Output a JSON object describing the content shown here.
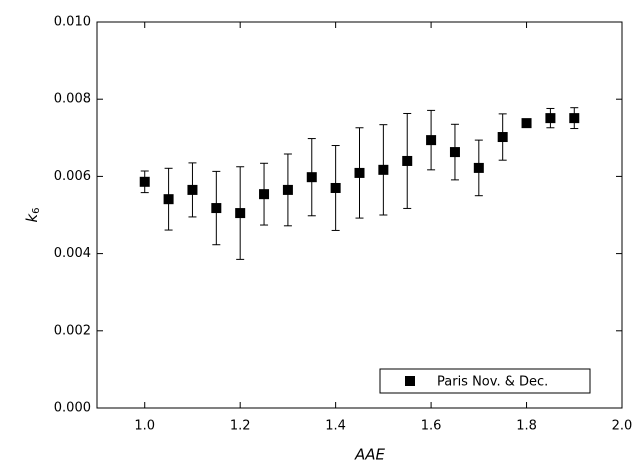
{
  "chart_data": {
    "type": "scatter",
    "xlabel": "AAE",
    "ylabel": "k",
    "ylabel_subscript": "6",
    "x": [
      1.0,
      1.05,
      1.1,
      1.15,
      1.2,
      1.25,
      1.3,
      1.35,
      1.4,
      1.45,
      1.5,
      1.55,
      1.6,
      1.65,
      1.7,
      1.75,
      1.8,
      1.85,
      1.9
    ],
    "series": [
      {
        "name": "Paris Nov. & Dec.",
        "color": "#000000",
        "values": [
          0.00586,
          0.00541,
          0.00565,
          0.00518,
          0.00505,
          0.00554,
          0.00565,
          0.00598,
          0.0057,
          0.00609,
          0.00617,
          0.0064,
          0.00694,
          0.00663,
          0.00622,
          0.00702,
          0.00738,
          0.00751,
          0.00751
        ],
        "errors": [
          0.00028,
          0.0008,
          0.0007,
          0.00095,
          0.0012,
          0.0008,
          0.00093,
          0.001,
          0.0011,
          0.00117,
          0.00117,
          0.00123,
          0.00077,
          0.00072,
          0.00072,
          0.0006,
          5e-05,
          0.00025,
          0.00027
        ]
      }
    ],
    "xlim": [
      0.9,
      2.0
    ],
    "xticks": [
      {
        "value": 1.0,
        "label": "1.0"
      },
      1.2,
      1.4,
      1.6,
      1.8,
      {
        "value": 2.0,
        "label": "2.0"
      }
    ],
    "ylim": [
      0,
      0.01
    ],
    "yticks": [
      {
        "value": 0,
        "label": "0.000"
      },
      {
        "value": 0.002,
        "label": "0.002"
      },
      {
        "value": 0.004,
        "label": "0.004"
      },
      {
        "value": 0.006,
        "label": "0.006"
      },
      {
        "value": 0.008,
        "label": "0.008"
      },
      {
        "value": 0.01,
        "label": "0.010"
      }
    ],
    "legend": "lower-right"
  }
}
